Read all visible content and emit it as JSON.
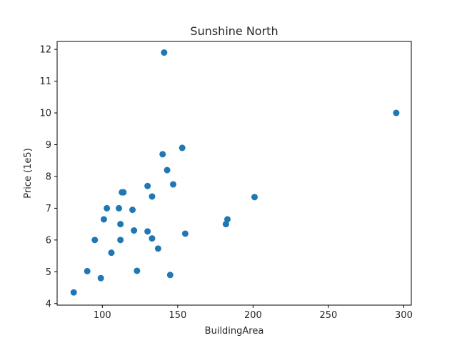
{
  "chart_data": {
    "type": "scatter",
    "title": "Sunshine North",
    "xlabel": "BuildingArea",
    "ylabel": "Price (1e5)",
    "xlim": [
      70,
      305
    ],
    "ylim": [
      3.95,
      12.25
    ],
    "xticks": [
      100,
      150,
      200,
      250,
      300
    ],
    "yticks": [
      4,
      5,
      6,
      7,
      8,
      9,
      10,
      11,
      12
    ],
    "grid": false,
    "point_color": "#1f77b4",
    "series": [
      {
        "points": [
          {
            "x": 81,
            "y": 4.35
          },
          {
            "x": 90,
            "y": 5.02
          },
          {
            "x": 95,
            "y": 6.0
          },
          {
            "x": 99,
            "y": 4.8
          },
          {
            "x": 101,
            "y": 6.65
          },
          {
            "x": 103,
            "y": 7.0
          },
          {
            "x": 106,
            "y": 5.6
          },
          {
            "x": 111,
            "y": 7.0
          },
          {
            "x": 112,
            "y": 6.5
          },
          {
            "x": 112,
            "y": 6.0
          },
          {
            "x": 113,
            "y": 7.5
          },
          {
            "x": 114,
            "y": 7.5
          },
          {
            "x": 120,
            "y": 6.95
          },
          {
            "x": 121,
            "y": 6.3
          },
          {
            "x": 123,
            "y": 5.03
          },
          {
            "x": 130,
            "y": 7.7
          },
          {
            "x": 130,
            "y": 6.27
          },
          {
            "x": 133,
            "y": 7.37
          },
          {
            "x": 133,
            "y": 6.05
          },
          {
            "x": 137,
            "y": 5.73
          },
          {
            "x": 140,
            "y": 8.7
          },
          {
            "x": 141,
            "y": 11.9
          },
          {
            "x": 143,
            "y": 8.2
          },
          {
            "x": 145,
            "y": 4.9
          },
          {
            "x": 147,
            "y": 7.75
          },
          {
            "x": 153,
            "y": 8.9
          },
          {
            "x": 155,
            "y": 6.2
          },
          {
            "x": 182,
            "y": 6.5
          },
          {
            "x": 183,
            "y": 6.65
          },
          {
            "x": 201,
            "y": 7.35
          },
          {
            "x": 295,
            "y": 10.0
          }
        ]
      }
    ]
  }
}
